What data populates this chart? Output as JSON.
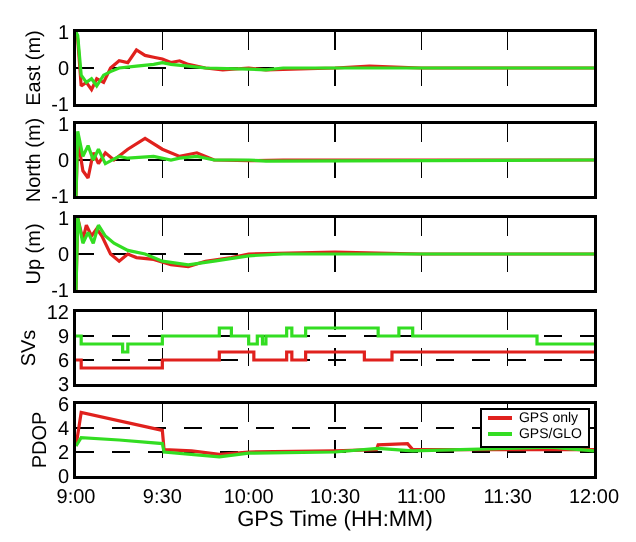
{
  "chart_data": [
    {
      "type": "line",
      "ylabel": "East (m)",
      "xlim": [
        9,
        12
      ],
      "xticks": [
        {
          "value": 9,
          "label": null
        },
        {
          "value": 9.5,
          "label": null
        },
        {
          "value": 10,
          "label": null
        },
        {
          "value": 10.5,
          "label": null
        },
        {
          "value": 11,
          "label": null
        },
        {
          "value": 11.5,
          "label": null
        },
        {
          "value": 12,
          "label": null
        }
      ],
      "ylim": [
        -1,
        1
      ],
      "yticks": [
        -1,
        0,
        1
      ],
      "grid": true,
      "tick_labels": "y",
      "series": [
        {
          "color": "#e0211d",
          "x": [
            9,
            9.01,
            9.03,
            9.06,
            9.09,
            9.12,
            9.16,
            9.2,
            9.25,
            9.3,
            9.35,
            9.4,
            9.45,
            9.5,
            9.55,
            9.6,
            9.65,
            9.75,
            9.85,
            10,
            10.1,
            10.5,
            10.7,
            11,
            12
          ],
          "values": [
            1,
            0.8,
            -0.5,
            -0.4,
            -0.6,
            -0.3,
            -0.4,
            0,
            0.2,
            0.15,
            0.5,
            0.35,
            0.3,
            0.25,
            0.15,
            0.2,
            0.1,
            0,
            -0.05,
            0,
            -0.05,
            0,
            0.05,
            0,
            0
          ]
        },
        {
          "color": "#33dd22",
          "x": [
            9,
            9.01,
            9.03,
            9.06,
            9.09,
            9.12,
            9.16,
            9.2,
            9.25,
            9.35,
            9.45,
            9.5,
            9.55,
            9.65,
            9.75,
            10,
            10.1,
            10.2,
            12
          ],
          "values": [
            1,
            0.9,
            -0.2,
            -0.4,
            -0.3,
            -0.5,
            -0.2,
            -0.1,
            0,
            0.05,
            0.1,
            0.15,
            0.1,
            0.05,
            0,
            -0.03,
            -0.05,
            0,
            0
          ]
        }
      ]
    },
    {
      "type": "line",
      "ylabel": "North (m)",
      "xlim": [
        9,
        12
      ],
      "xticks": [
        {
          "value": 9,
          "label": null
        },
        {
          "value": 9.5,
          "label": null
        },
        {
          "value": 10,
          "label": null
        },
        {
          "value": 10.5,
          "label": null
        },
        {
          "value": 11,
          "label": null
        },
        {
          "value": 11.5,
          "label": null
        },
        {
          "value": 12,
          "label": null
        }
      ],
      "ylim": [
        -1,
        1
      ],
      "yticks": [
        -1,
        0,
        1
      ],
      "grid": true,
      "tick_labels": "y",
      "series": [
        {
          "color": "#e0211d",
          "x": [
            9,
            9.01,
            9.04,
            9.07,
            9.1,
            9.13,
            9.17,
            9.22,
            9.3,
            9.4,
            9.5,
            9.6,
            9.7,
            9.8,
            10,
            10.2,
            12
          ],
          "values": [
            -1,
            0.6,
            -0.3,
            -0.5,
            0.2,
            -0.1,
            0.2,
            0,
            0.3,
            0.6,
            0.3,
            0.1,
            0.2,
            0,
            -0.02,
            0,
            0
          ]
        },
        {
          "color": "#33dd22",
          "x": [
            9,
            9.01,
            9.04,
            9.07,
            9.1,
            9.13,
            9.17,
            9.25,
            9.3,
            9.45,
            9.55,
            9.6,
            9.7,
            9.8,
            10,
            10.1,
            12
          ],
          "values": [
            -1,
            0.8,
            0.1,
            0.4,
            0,
            0.3,
            -0.1,
            0.1,
            0.05,
            0.1,
            0,
            0.05,
            0.1,
            0,
            0,
            -0.03,
            0
          ]
        }
      ]
    },
    {
      "type": "line",
      "ylabel": "Up (m)",
      "xlim": [
        9,
        12
      ],
      "xticks": [
        {
          "value": 9,
          "label": null
        },
        {
          "value": 9.5,
          "label": null
        },
        {
          "value": 10,
          "label": null
        },
        {
          "value": 10.5,
          "label": null
        },
        {
          "value": 11,
          "label": null
        },
        {
          "value": 11.5,
          "label": null
        },
        {
          "value": 12,
          "label": null
        }
      ],
      "ylim": [
        -1,
        1
      ],
      "yticks": [
        -1,
        0,
        1
      ],
      "grid": true,
      "tick_labels": "y",
      "series": [
        {
          "color": "#e0211d",
          "x": [
            9,
            9.01,
            9.04,
            9.06,
            9.09,
            9.12,
            9.15,
            9.2,
            9.25,
            9.3,
            9.35,
            9.45,
            9.55,
            9.65,
            9.75,
            9.9,
            10,
            10.5,
            11,
            12
          ],
          "values": [
            -1,
            1,
            0.4,
            0.8,
            0.5,
            0.7,
            0.5,
            0,
            -0.2,
            0,
            -0.1,
            -0.15,
            -0.3,
            -0.35,
            -0.2,
            -0.1,
            0,
            0.05,
            0,
            0
          ]
        },
        {
          "color": "#33dd22",
          "x": [
            9,
            9.01,
            9.04,
            9.07,
            9.1,
            9.13,
            9.17,
            9.22,
            9.3,
            9.4,
            9.5,
            9.65,
            9.8,
            10,
            10.2,
            12
          ],
          "values": [
            -1,
            1,
            0.3,
            0.6,
            0.3,
            0.8,
            0.5,
            0.3,
            0.1,
            0,
            -0.2,
            -0.3,
            -0.2,
            -0.05,
            0,
            0
          ]
        }
      ]
    },
    {
      "type": "step",
      "ylabel": "SVs",
      "xlim": [
        9,
        12
      ],
      "xticks": [
        {
          "value": 9,
          "label": null
        },
        {
          "value": 9.5,
          "label": null
        },
        {
          "value": 10,
          "label": null
        },
        {
          "value": 10.5,
          "label": null
        },
        {
          "value": 11,
          "label": null
        },
        {
          "value": 11.5,
          "label": null
        },
        {
          "value": 12,
          "label": null
        }
      ],
      "ylim": [
        3,
        12
      ],
      "yticks": [
        3,
        6,
        9,
        12
      ],
      "grid": true,
      "tick_labels": "y",
      "series": [
        {
          "color": "#e0211d",
          "x": [
            9,
            9.03,
            9.5,
            9.83,
            10.03,
            10.22,
            10.25,
            10.33,
            10.67,
            10.83,
            12
          ],
          "values": [
            6,
            5,
            6,
            7,
            6,
            7,
            6,
            7,
            6,
            7,
            7
          ]
        },
        {
          "color": "#33dd22",
          "x": [
            9,
            9.03,
            9.27,
            9.3,
            9.5,
            9.83,
            9.9,
            10,
            10.05,
            10.08,
            10.1,
            10.22,
            10.25,
            10.33,
            10.75,
            10.87,
            10.95,
            11.67,
            12
          ],
          "values": [
            9,
            8,
            7,
            8,
            9,
            10,
            9,
            8,
            9,
            8,
            9,
            10,
            9,
            10,
            9,
            10,
            9,
            8,
            8
          ]
        }
      ]
    },
    {
      "type": "line",
      "ylabel": "PDOP",
      "xlabel": "GPS Time (HH:MM)",
      "xlim": [
        9,
        12
      ],
      "xticks": [
        {
          "value": 9,
          "label": "9:00"
        },
        {
          "value": 9.5,
          "label": "9:30"
        },
        {
          "value": 10,
          "label": "10:00"
        },
        {
          "value": 10.5,
          "label": "10:30"
        },
        {
          "value": 11,
          "label": "11:00"
        },
        {
          "value": 11.5,
          "label": "11:30"
        },
        {
          "value": 12,
          "label": "12:00"
        }
      ],
      "ylim": [
        0,
        6
      ],
      "yticks": [
        0,
        2,
        4,
        6
      ],
      "grid": true,
      "legend": "top right",
      "series": [
        {
          "name": "GPS only",
          "color": "#e0211d",
          "x": [
            9,
            9.03,
            9.5,
            9.51,
            9.67,
            9.83,
            10,
            10.5,
            10.74,
            10.75,
            10.92,
            10.95,
            12
          ],
          "values": [
            2.5,
            5.3,
            3.8,
            2.2,
            2.1,
            1.8,
            2,
            2.1,
            2.2,
            2.6,
            2.7,
            2.2,
            2.2
          ]
        },
        {
          "name": "GPS/GLO",
          "color": "#33dd22",
          "x": [
            9,
            9.03,
            9.25,
            9.5,
            9.51,
            9.83,
            10,
            10.5,
            10.75,
            10.95,
            11.5,
            11.75,
            12
          ],
          "values": [
            2.5,
            3.2,
            3,
            2.7,
            2,
            1.6,
            1.9,
            2,
            2.3,
            2.1,
            2.3,
            2.4,
            2.1
          ]
        }
      ]
    }
  ]
}
